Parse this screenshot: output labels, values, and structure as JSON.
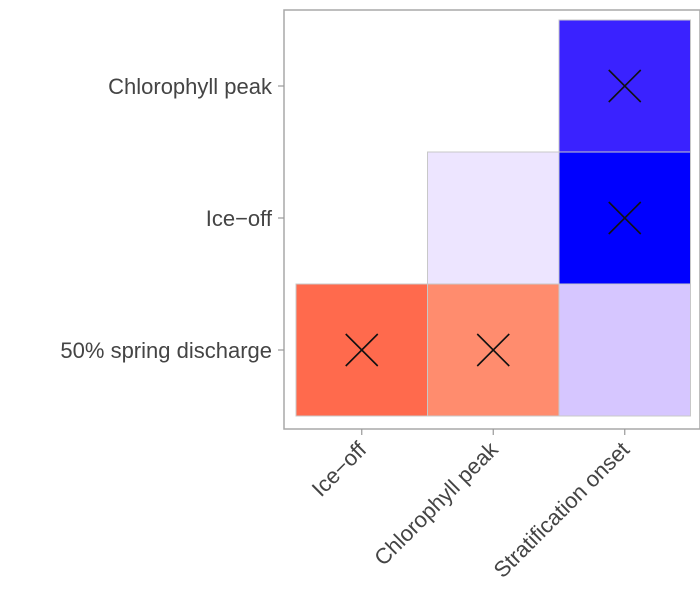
{
  "chart_data": {
    "type": "heatmap",
    "title": "",
    "xlabel": "",
    "ylabel": "",
    "x_categories": [
      "Ice−off",
      "Chlorophyll peak",
      "Stratification onset"
    ],
    "y_categories": [
      "50% spring discharge",
      "Ice−off",
      "Chlorophyll peak"
    ],
    "x_tick_rotation_deg": -45,
    "grid": false,
    "legend": "none",
    "colors": {
      "strong_positive": "#ff6a4d",
      "positive": "#ff8c6e",
      "strong_negative": "#0000ff",
      "negative": "#3a22ff",
      "weak_negative": "#d6c6ff",
      "very_weak_negative": "#ede5ff"
    },
    "cells": [
      {
        "x": "Ice−off",
        "y": "50% spring discharge",
        "color": "#ff6a4d",
        "significant": true
      },
      {
        "x": "Chlorophyll peak",
        "y": "50% spring discharge",
        "color": "#ff8c6e",
        "significant": true
      },
      {
        "x": "Stratification onset",
        "y": "50% spring discharge",
        "color": "#d6c6ff",
        "significant": false
      },
      {
        "x": "Chlorophyll peak",
        "y": "Ice−off",
        "color": "#ede5ff",
        "significant": false
      },
      {
        "x": "Stratification onset",
        "y": "Ice−off",
        "color": "#0000ff",
        "significant": true
      },
      {
        "x": "Stratification onset",
        "y": "Chlorophyll peak",
        "color": "#3a22ff",
        "significant": true
      }
    ]
  }
}
